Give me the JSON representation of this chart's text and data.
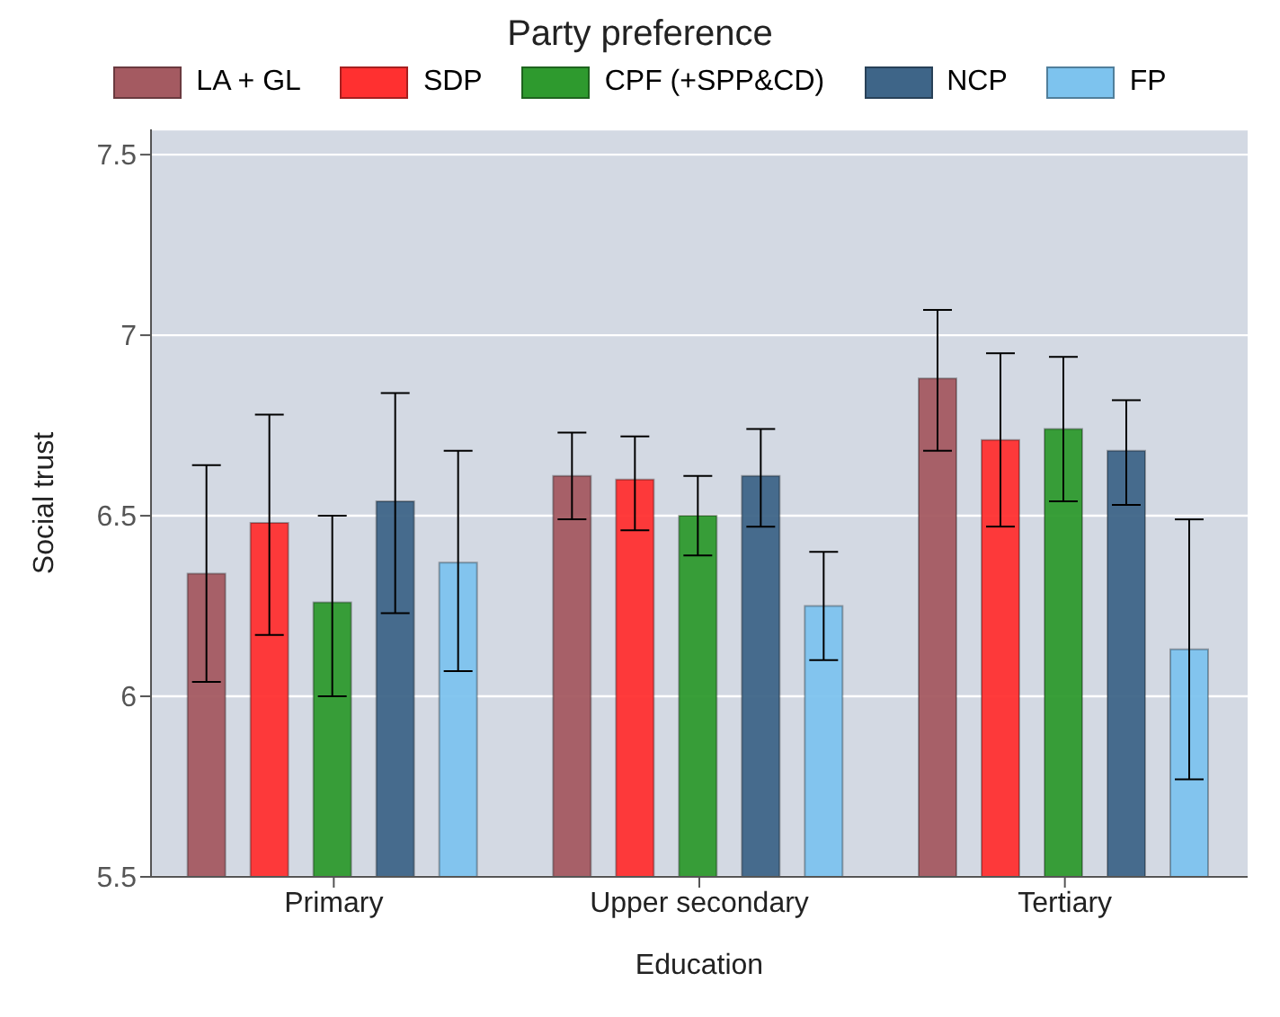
{
  "chart_data": {
    "type": "bar",
    "xlabel": "Education",
    "ylabel": "Social trust",
    "legend_title": "Party preference",
    "legend": "top",
    "grid": "y",
    "categories": [
      "Primary",
      "Upper secondary",
      "Tertiary"
    ],
    "ylim": [
      5.5,
      7.57
    ],
    "yticks": [
      5.5,
      6,
      6.5,
      7,
      7.5
    ],
    "series": [
      {
        "name": "LA + GL",
        "color": "#a45a61",
        "values": [
          6.34,
          6.61,
          6.88
        ],
        "errors": [
          [
            6.04,
            6.64
          ],
          [
            6.49,
            6.73
          ],
          [
            6.68,
            7.07
          ]
        ]
      },
      {
        "name": "SDP",
        "color": "#ff3030",
        "values": [
          6.48,
          6.6,
          6.71
        ],
        "errors": [
          [
            6.17,
            6.78
          ],
          [
            6.46,
            6.72
          ],
          [
            6.47,
            6.95
          ]
        ]
      },
      {
        "name": "CPF (+SPP&CD)",
        "color": "#2e9a2e",
        "values": [
          6.26,
          6.5,
          6.74
        ],
        "errors": [
          [
            6.0,
            6.5
          ],
          [
            6.39,
            6.61
          ],
          [
            6.54,
            6.94
          ]
        ]
      },
      {
        "name": "NCP",
        "color": "#3e6588",
        "values": [
          6.54,
          6.61,
          6.68
        ],
        "errors": [
          [
            6.23,
            6.84
          ],
          [
            6.47,
            6.74
          ],
          [
            6.53,
            6.82
          ]
        ]
      },
      {
        "name": "FP",
        "color": "#7dc3ee",
        "values": [
          6.37,
          6.25,
          6.13
        ],
        "errors": [
          [
            6.07,
            6.68
          ],
          [
            6.1,
            6.4
          ],
          [
            5.77,
            6.49
          ]
        ]
      }
    ]
  }
}
